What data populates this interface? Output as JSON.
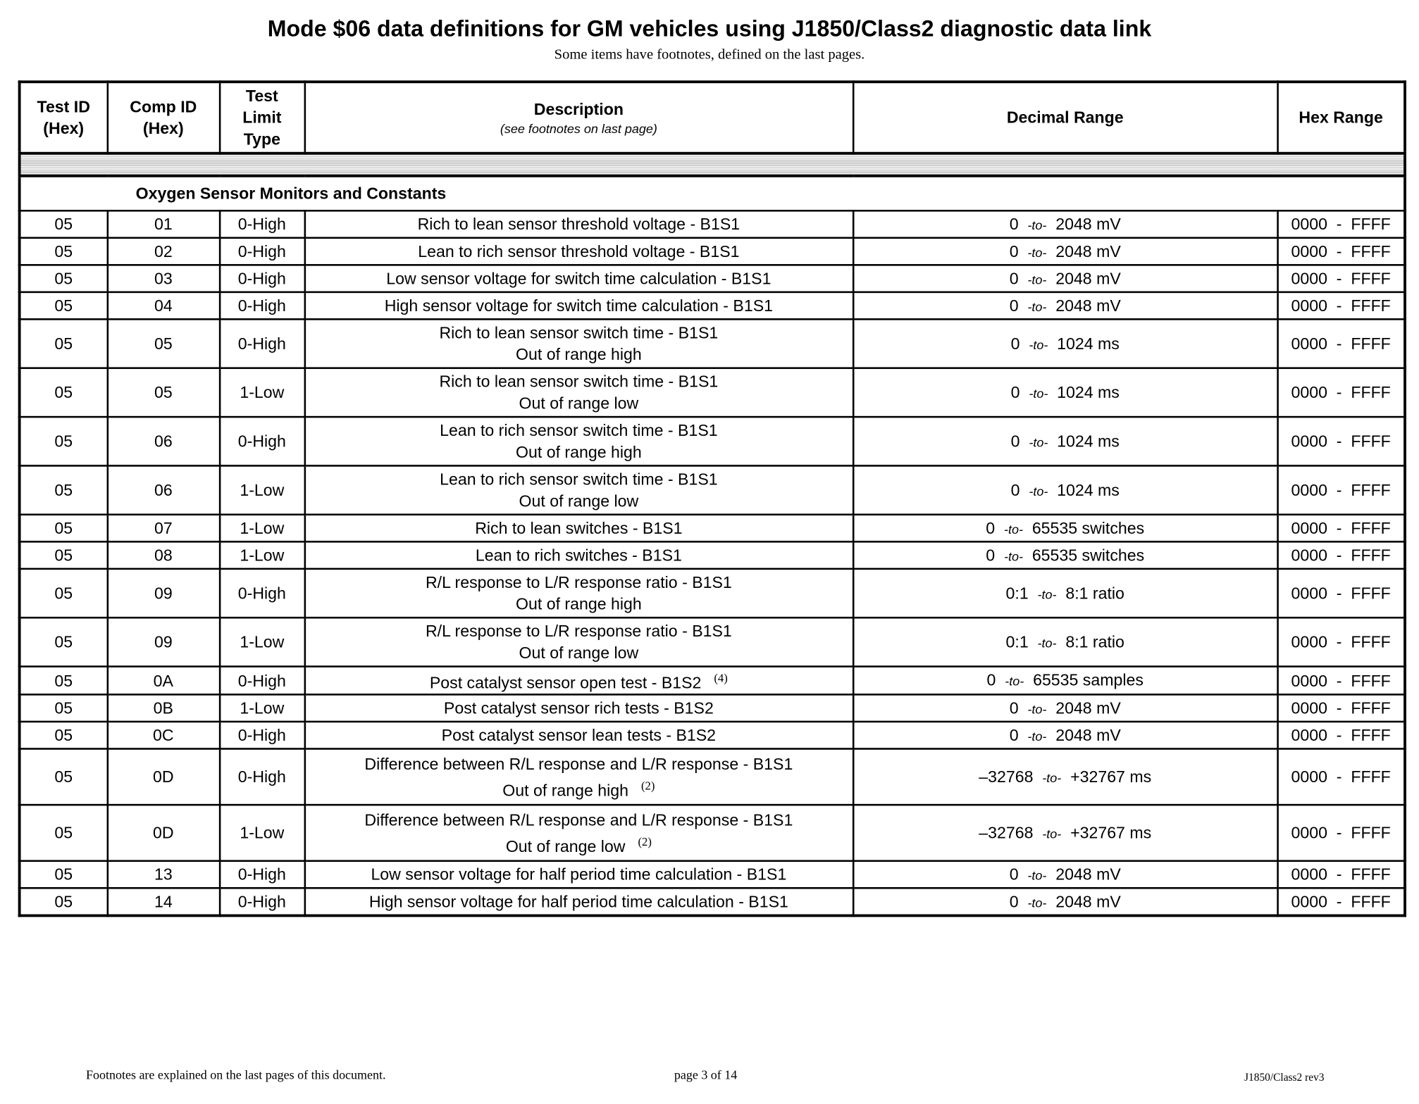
{
  "title": "Mode $06 data definitions for GM vehicles using J1850/Class2  diagnostic data link",
  "subtitle": "Some items have footnotes, defined on the last pages.",
  "headers": {
    "test_id": [
      "Test ID",
      "(Hex)"
    ],
    "comp_id": [
      "Comp ID",
      "(Hex)"
    ],
    "limit_type": [
      "Test",
      "Limit",
      "Type"
    ],
    "description": "Description",
    "description_note": "(see footnotes on last page)",
    "decimal_range": "Decimal Range",
    "hex_range": "Hex Range"
  },
  "section": "Oxygen Sensor Monitors and Constants",
  "to_label": "-to-",
  "rows": [
    {
      "test": "05",
      "comp": "01",
      "type": "0-High",
      "desc": [
        "Rich to lean sensor threshold voltage - B1S1"
      ],
      "fn": "",
      "from": "0",
      "to": "2048 mV",
      "hex": "0000  -  FFFF"
    },
    {
      "test": "05",
      "comp": "02",
      "type": "0-High",
      "desc": [
        "Lean to rich sensor threshold voltage - B1S1"
      ],
      "fn": "",
      "from": "0",
      "to": "2048 mV",
      "hex": "0000  -  FFFF"
    },
    {
      "test": "05",
      "comp": "03",
      "type": "0-High",
      "desc": [
        "Low sensor voltage for switch time calculation - B1S1"
      ],
      "fn": "",
      "from": "0",
      "to": "2048 mV",
      "hex": "0000  -  FFFF"
    },
    {
      "test": "05",
      "comp": "04",
      "type": "0-High",
      "desc": [
        "High sensor voltage for switch time calculation - B1S1"
      ],
      "fn": "",
      "from": "0",
      "to": "2048 mV",
      "hex": "0000  -  FFFF"
    },
    {
      "test": "05",
      "comp": "05",
      "type": "0-High",
      "desc": [
        "Rich to lean sensor switch time - B1S1",
        "Out of range high"
      ],
      "fn": "",
      "from": "0",
      "to": "1024 ms",
      "hex": "0000  -  FFFF"
    },
    {
      "test": "05",
      "comp": "05",
      "type": "1-Low",
      "desc": [
        "Rich to lean sensor switch time - B1S1",
        "Out of range low"
      ],
      "fn": "",
      "from": "0",
      "to": "1024 ms",
      "hex": "0000  -  FFFF"
    },
    {
      "test": "05",
      "comp": "06",
      "type": "0-High",
      "desc": [
        "Lean to rich sensor switch time - B1S1",
        "Out of range high"
      ],
      "fn": "",
      "from": "0",
      "to": "1024 ms",
      "hex": "0000  -  FFFF"
    },
    {
      "test": "05",
      "comp": "06",
      "type": "1-Low",
      "desc": [
        "Lean to rich sensor switch time - B1S1",
        "Out of range low"
      ],
      "fn": "",
      "from": "0",
      "to": "1024 ms",
      "hex": "0000  -  FFFF"
    },
    {
      "test": "05",
      "comp": "07",
      "type": "1-Low",
      "desc": [
        "Rich to lean switches - B1S1"
      ],
      "fn": "",
      "from": "0",
      "to": "65535 switches",
      "hex": "0000  -  FFFF"
    },
    {
      "test": "05",
      "comp": "08",
      "type": "1-Low",
      "desc": [
        "Lean to rich switches - B1S1"
      ],
      "fn": "",
      "from": "0",
      "to": "65535 switches",
      "hex": "0000  -  FFFF"
    },
    {
      "test": "05",
      "comp": "09",
      "type": "0-High",
      "desc": [
        "R/L response to L/R response ratio - B1S1",
        "Out of range high"
      ],
      "fn": "",
      "from": "0:1",
      "to": "8:1 ratio",
      "hex": "0000  -  FFFF"
    },
    {
      "test": "05",
      "comp": "09",
      "type": "1-Low",
      "desc": [
        "R/L response to L/R response ratio - B1S1",
        "Out of range low"
      ],
      "fn": "",
      "from": "0:1",
      "to": "8:1 ratio",
      "hex": "0000  -  FFFF"
    },
    {
      "test": "05",
      "comp": "0A",
      "type": "0-High",
      "desc": [
        "Post catalyst sensor open test - B1S2"
      ],
      "fn": "(4)",
      "from": "0",
      "to": "65535 samples",
      "hex": "0000  -  FFFF"
    },
    {
      "test": "05",
      "comp": "0B",
      "type": "1-Low",
      "desc": [
        "Post catalyst sensor rich tests - B1S2"
      ],
      "fn": "",
      "from": "0",
      "to": "2048 mV",
      "hex": "0000  -  FFFF"
    },
    {
      "test": "05",
      "comp": "0C",
      "type": "0-High",
      "desc": [
        "Post catalyst sensor lean tests - B1S2"
      ],
      "fn": "",
      "from": "0",
      "to": "2048 mV",
      "hex": "0000  -  FFFF"
    },
    {
      "test": "05",
      "comp": "0D",
      "type": "0-High",
      "desc": [
        "Difference between R/L response and L/R response - B1S1",
        "Out of range high"
      ],
      "fn": "(2)",
      "from": "–32768",
      "to": "+32767 ms",
      "hex": "0000  -  FFFF"
    },
    {
      "test": "05",
      "comp": "0D",
      "type": "1-Low",
      "desc": [
        "Difference between R/L response and L/R response - B1S1",
        "Out of range low"
      ],
      "fn": "(2)",
      "from": "–32768",
      "to": "+32767 ms",
      "hex": "0000  -  FFFF"
    },
    {
      "test": "05",
      "comp": "13",
      "type": "0-High",
      "desc": [
        "Low sensor voltage for half period time calculation - B1S1"
      ],
      "fn": "",
      "from": "0",
      "to": "2048 mV",
      "hex": "0000  -  FFFF"
    },
    {
      "test": "05",
      "comp": "14",
      "type": "0-High",
      "desc": [
        "High sensor voltage for half period time calculation - B1S1"
      ],
      "fn": "",
      "from": "0",
      "to": "2048 mV",
      "hex": "0000  -  FFFF"
    }
  ],
  "footer": {
    "left": "Footnotes are explained on the last pages of this document.",
    "center": "page 3 of  14",
    "right": "J1850/Class2 rev3"
  }
}
